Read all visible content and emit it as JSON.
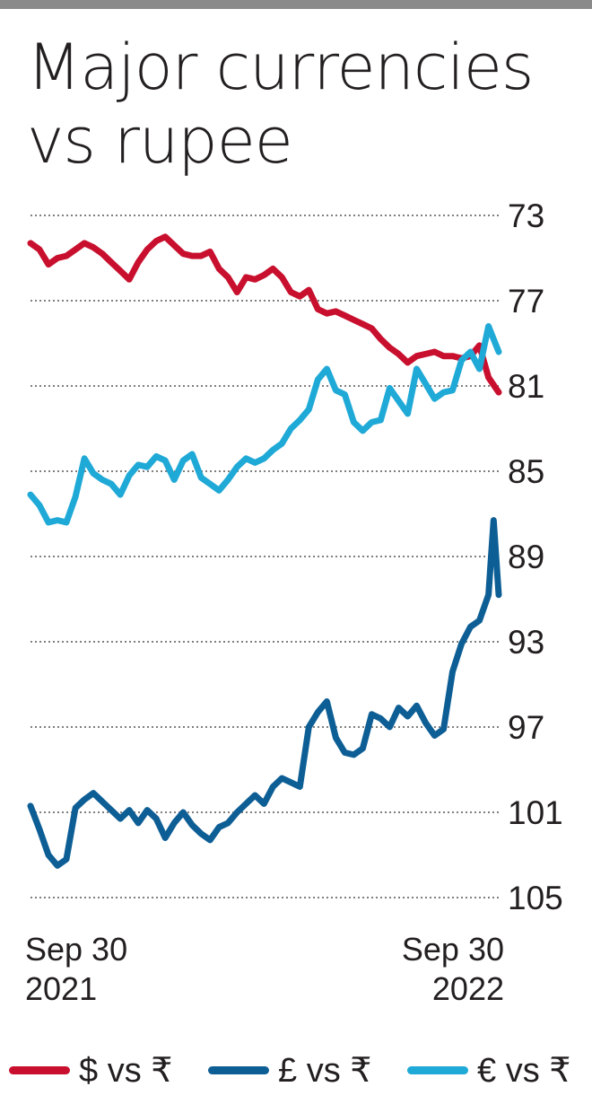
{
  "chart_data": {
    "type": "line",
    "title": "Major currencies vs rupee",
    "y_ticks": [
      "73",
      "77",
      "81",
      "85",
      "89",
      "93",
      "97",
      "101",
      "105"
    ],
    "y_tick_values": [
      73,
      77,
      81,
      85,
      89,
      93,
      97,
      101,
      105
    ],
    "ylim": [
      73,
      105
    ],
    "y_inverted": true,
    "x_labels": [
      {
        "line1": "Sep 30",
        "line2": "2021"
      },
      {
        "line1": "Sep 30",
        "line2": "2022"
      }
    ],
    "xlim": [
      "2021-09-30",
      "2022-09-30"
    ],
    "grid": "horizontal dotted",
    "legend_position": "bottom",
    "series": [
      {
        "name": "$ vs ₹",
        "color": "#c8102e",
        "x": [
          "2021-09-30",
          "2021-10-07",
          "2021-10-14",
          "2021-10-21",
          "2021-10-28",
          "2021-11-04",
          "2021-11-11",
          "2021-11-18",
          "2021-11-25",
          "2021-12-02",
          "2021-12-09",
          "2021-12-16",
          "2021-12-23",
          "2021-12-30",
          "2022-01-06",
          "2022-01-13",
          "2022-01-20",
          "2022-01-27",
          "2022-02-03",
          "2022-02-10",
          "2022-02-17",
          "2022-02-24",
          "2022-03-03",
          "2022-03-10",
          "2022-03-17",
          "2022-03-24",
          "2022-03-31",
          "2022-04-07",
          "2022-04-14",
          "2022-04-21",
          "2022-04-28",
          "2022-05-05",
          "2022-05-12",
          "2022-05-19",
          "2022-05-26",
          "2022-06-02",
          "2022-06-09",
          "2022-06-16",
          "2022-06-23",
          "2022-06-30",
          "2022-07-07",
          "2022-07-14",
          "2022-07-21",
          "2022-07-28",
          "2022-08-04",
          "2022-08-11",
          "2022-08-18",
          "2022-08-25",
          "2022-09-01",
          "2022-09-08",
          "2022-09-15",
          "2022-09-22",
          "2022-09-30"
        ],
        "values": [
          74.3,
          74.6,
          75.3,
          75.0,
          74.9,
          74.6,
          74.3,
          74.5,
          74.8,
          75.2,
          75.6,
          76.0,
          75.2,
          74.6,
          74.2,
          74.0,
          74.4,
          74.8,
          74.9,
          74.9,
          74.7,
          75.5,
          75.9,
          76.6,
          75.9,
          76.0,
          75.8,
          75.5,
          75.9,
          76.6,
          76.8,
          76.5,
          77.4,
          77.6,
          77.5,
          77.7,
          77.9,
          78.1,
          78.3,
          78.8,
          79.2,
          79.5,
          79.9,
          79.6,
          79.5,
          79.4,
          79.6,
          79.6,
          79.7,
          79.6,
          79.1,
          80.6,
          81.3
        ]
      },
      {
        "name": "£ vs ₹",
        "color": "#0d5e95",
        "x": [
          "2021-09-30",
          "2021-10-07",
          "2021-10-14",
          "2021-10-21",
          "2021-10-28",
          "2021-11-04",
          "2021-11-11",
          "2021-11-18",
          "2021-11-25",
          "2021-12-02",
          "2021-12-09",
          "2021-12-16",
          "2021-12-23",
          "2021-12-30",
          "2022-01-06",
          "2022-01-13",
          "2022-01-20",
          "2022-01-27",
          "2022-02-03",
          "2022-02-10",
          "2022-02-17",
          "2022-02-24",
          "2022-03-03",
          "2022-03-10",
          "2022-03-17",
          "2022-03-24",
          "2022-03-31",
          "2022-04-07",
          "2022-04-14",
          "2022-04-21",
          "2022-04-28",
          "2022-05-05",
          "2022-05-12",
          "2022-05-19",
          "2022-05-26",
          "2022-06-02",
          "2022-06-09",
          "2022-06-16",
          "2022-06-23",
          "2022-06-30",
          "2022-07-07",
          "2022-07-14",
          "2022-07-21",
          "2022-07-28",
          "2022-08-04",
          "2022-08-11",
          "2022-08-18",
          "2022-08-25",
          "2022-09-01",
          "2022-09-08",
          "2022-09-15",
          "2022-09-22",
          "2022-09-26",
          "2022-09-30"
        ],
        "values": [
          100.7,
          101.8,
          103.0,
          103.5,
          103.2,
          100.8,
          100.4,
          100.1,
          100.5,
          100.9,
          101.3,
          100.9,
          101.5,
          100.9,
          101.3,
          102.2,
          101.5,
          101.0,
          101.6,
          102.0,
          102.3,
          101.7,
          101.5,
          101.0,
          100.6,
          100.2,
          100.6,
          99.8,
          99.4,
          99.6,
          99.8,
          97.0,
          96.3,
          95.8,
          97.5,
          98.2,
          98.3,
          98.0,
          96.4,
          96.6,
          97.0,
          96.1,
          96.5,
          96.0,
          96.8,
          97.4,
          97.1,
          94.4,
          93.1,
          92.3,
          92.0,
          90.8,
          87.3,
          90.8
        ]
      },
      {
        "name": "€ vs ₹",
        "color": "#1fa9d6",
        "x": [
          "2021-09-30",
          "2021-10-07",
          "2021-10-14",
          "2021-10-21",
          "2021-10-28",
          "2021-11-04",
          "2021-11-11",
          "2021-11-18",
          "2021-11-25",
          "2021-12-02",
          "2021-12-09",
          "2021-12-16",
          "2021-12-23",
          "2021-12-30",
          "2022-01-06",
          "2022-01-13",
          "2022-01-20",
          "2022-01-27",
          "2022-02-03",
          "2022-02-10",
          "2022-02-17",
          "2022-02-24",
          "2022-03-03",
          "2022-03-10",
          "2022-03-17",
          "2022-03-24",
          "2022-03-31",
          "2022-04-07",
          "2022-04-14",
          "2022-04-21",
          "2022-04-28",
          "2022-05-05",
          "2022-05-12",
          "2022-05-19",
          "2022-05-26",
          "2022-06-02",
          "2022-06-09",
          "2022-06-16",
          "2022-06-23",
          "2022-06-30",
          "2022-07-07",
          "2022-07-14",
          "2022-07-21",
          "2022-07-28",
          "2022-08-04",
          "2022-08-11",
          "2022-08-18",
          "2022-08-25",
          "2022-09-01",
          "2022-09-08",
          "2022-09-15",
          "2022-09-22",
          "2022-09-30"
        ],
        "values": [
          86.1,
          86.6,
          87.4,
          87.3,
          87.4,
          86.2,
          84.4,
          85.1,
          85.4,
          85.6,
          86.1,
          85.2,
          84.7,
          84.8,
          84.3,
          84.5,
          85.4,
          84.5,
          84.2,
          85.3,
          85.6,
          85.9,
          85.4,
          84.8,
          84.4,
          84.6,
          84.4,
          84.0,
          83.7,
          83.0,
          82.6,
          82.1,
          80.7,
          80.2,
          81.2,
          81.4,
          82.7,
          83.1,
          82.7,
          82.6,
          81.1,
          81.7,
          82.3,
          80.2,
          80.9,
          81.6,
          81.3,
          81.2,
          79.8,
          79.4,
          80.2,
          78.2,
          79.4
        ]
      }
    ]
  }
}
